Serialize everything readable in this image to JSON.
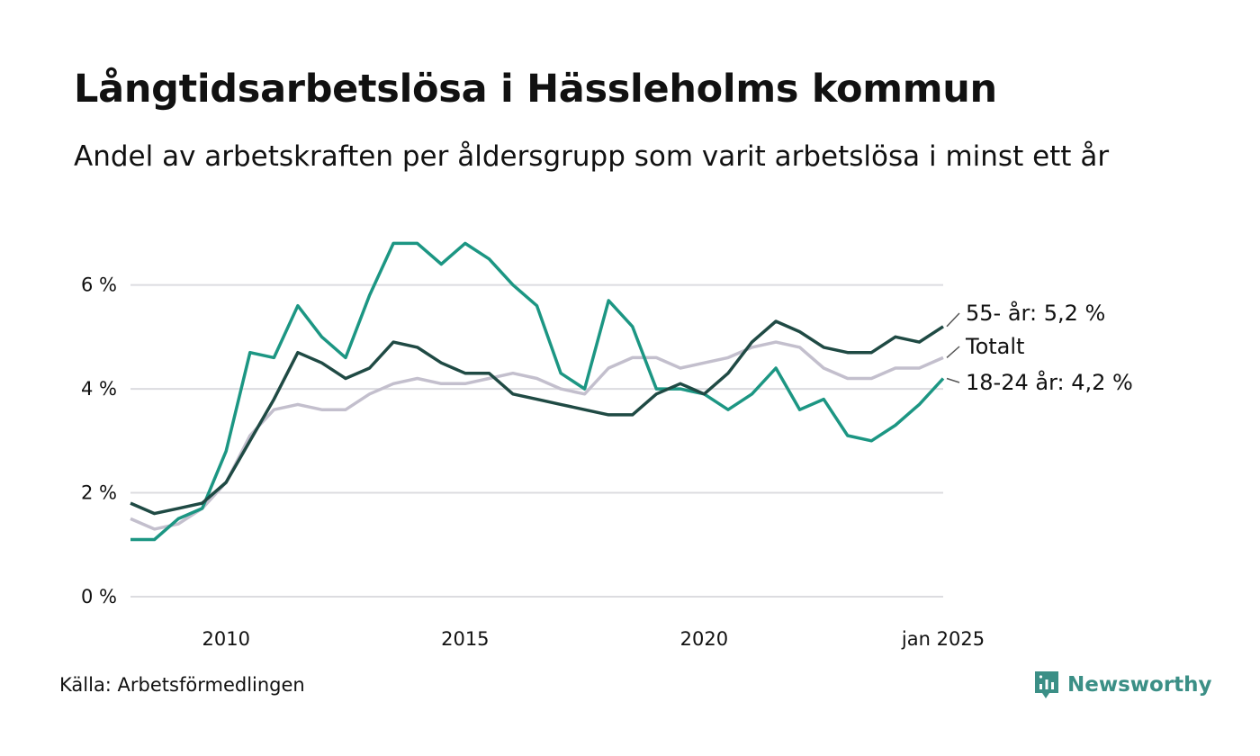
{
  "title": "Långtidsarbetslösa i Hässleholms kommun",
  "subtitle": "Andel av arbetskraften per åldersgrupp som varit arbetslösa i minst ett år",
  "source": "Källa: Arbetsförmedlingen",
  "brand": {
    "name": "Newsworthy",
    "icon": "newsworthy-logo-icon"
  },
  "colors": {
    "grid": "#dcdce0",
    "age_55": "#1f4a44",
    "total": "#c3bfcd",
    "age_18_24": "#1c9683",
    "brand": "#3b8f86"
  },
  "chart_data": {
    "type": "line",
    "title": "Långtidsarbetslösa i Hässleholms kommun",
    "subtitle": "Andel av arbetskraften per åldersgrupp som varit arbetslösa i minst ett år",
    "xlabel": "",
    "ylabel": "",
    "x_ticks": [
      {
        "value": 2010,
        "label": "2010"
      },
      {
        "value": 2015,
        "label": "2015"
      },
      {
        "value": 2020,
        "label": "2020"
      },
      {
        "value": 2025,
        "label": "jan 2025"
      }
    ],
    "y_ticks": [
      {
        "value": 0,
        "label": "0 %"
      },
      {
        "value": 2,
        "label": "2 %"
      },
      {
        "value": 4,
        "label": "4 %"
      },
      {
        "value": 6,
        "label": "6 %"
      }
    ],
    "xlim": [
      2008.0,
      2025.0
    ],
    "ylim": [
      0,
      7.5
    ],
    "grid": true,
    "legend": "end-of-line labels",
    "series": [
      {
        "name": "55- år",
        "end_label": "55- år: 5,2 %",
        "color": "#1f4a44",
        "x": [
          2008.0,
          2008.5,
          2009.0,
          2009.5,
          2010.0,
          2010.5,
          2011.0,
          2011.5,
          2012.0,
          2012.5,
          2013.0,
          2013.5,
          2014.0,
          2014.5,
          2015.0,
          2015.5,
          2016.0,
          2016.5,
          2017.0,
          2017.5,
          2018.0,
          2018.5,
          2019.0,
          2019.5,
          2020.0,
          2020.5,
          2021.0,
          2021.5,
          2022.0,
          2022.5,
          2023.0,
          2023.5,
          2024.0,
          2024.5,
          2025.0
        ],
        "y": [
          1.8,
          1.6,
          1.7,
          1.8,
          2.2,
          3.0,
          3.8,
          4.7,
          4.5,
          4.2,
          4.4,
          4.9,
          4.8,
          4.5,
          4.3,
          4.3,
          3.9,
          3.8,
          3.7,
          3.6,
          3.5,
          3.5,
          3.9,
          4.1,
          3.9,
          4.3,
          4.9,
          5.3,
          5.1,
          4.8,
          4.7,
          4.7,
          5.0,
          4.9,
          5.2
        ]
      },
      {
        "name": "Totalt",
        "end_label": "Totalt",
        "color": "#c3bfcd",
        "x": [
          2008.0,
          2008.5,
          2009.0,
          2009.5,
          2010.0,
          2010.5,
          2011.0,
          2011.5,
          2012.0,
          2012.5,
          2013.0,
          2013.5,
          2014.0,
          2014.5,
          2015.0,
          2015.5,
          2016.0,
          2016.5,
          2017.0,
          2017.5,
          2018.0,
          2018.5,
          2019.0,
          2019.5,
          2020.0,
          2020.5,
          2021.0,
          2021.5,
          2022.0,
          2022.5,
          2023.0,
          2023.5,
          2024.0,
          2024.5,
          2025.0
        ],
        "y": [
          1.5,
          1.3,
          1.4,
          1.7,
          2.2,
          3.1,
          3.6,
          3.7,
          3.6,
          3.6,
          3.9,
          4.1,
          4.2,
          4.1,
          4.1,
          4.2,
          4.3,
          4.2,
          4.0,
          3.9,
          4.4,
          4.6,
          4.6,
          4.4,
          4.5,
          4.6,
          4.8,
          4.9,
          4.8,
          4.4,
          4.2,
          4.2,
          4.4,
          4.4,
          4.6
        ]
      },
      {
        "name": "18-24 år",
        "end_label": "18-24 år: 4,2 %",
        "color": "#1c9683",
        "x": [
          2008.0,
          2008.5,
          2009.0,
          2009.5,
          2010.0,
          2010.5,
          2011.0,
          2011.5,
          2012.0,
          2012.5,
          2013.0,
          2013.5,
          2014.0,
          2014.5,
          2015.0,
          2015.5,
          2016.0,
          2016.5,
          2017.0,
          2017.5,
          2018.0,
          2018.5,
          2019.0,
          2019.5,
          2020.0,
          2020.5,
          2021.0,
          2021.5,
          2022.0,
          2022.5,
          2023.0,
          2023.5,
          2024.0,
          2024.5,
          2025.0
        ],
        "y": [
          1.1,
          1.1,
          1.5,
          1.7,
          2.8,
          4.7,
          4.6,
          5.6,
          5.0,
          4.6,
          5.8,
          6.8,
          6.8,
          6.4,
          6.8,
          6.5,
          6.0,
          5.6,
          4.3,
          4.0,
          5.7,
          5.2,
          4.0,
          4.0,
          3.9,
          3.6,
          3.9,
          4.4,
          3.6,
          3.8,
          3.1,
          3.0,
          3.3,
          3.7,
          4.2
        ]
      }
    ]
  }
}
